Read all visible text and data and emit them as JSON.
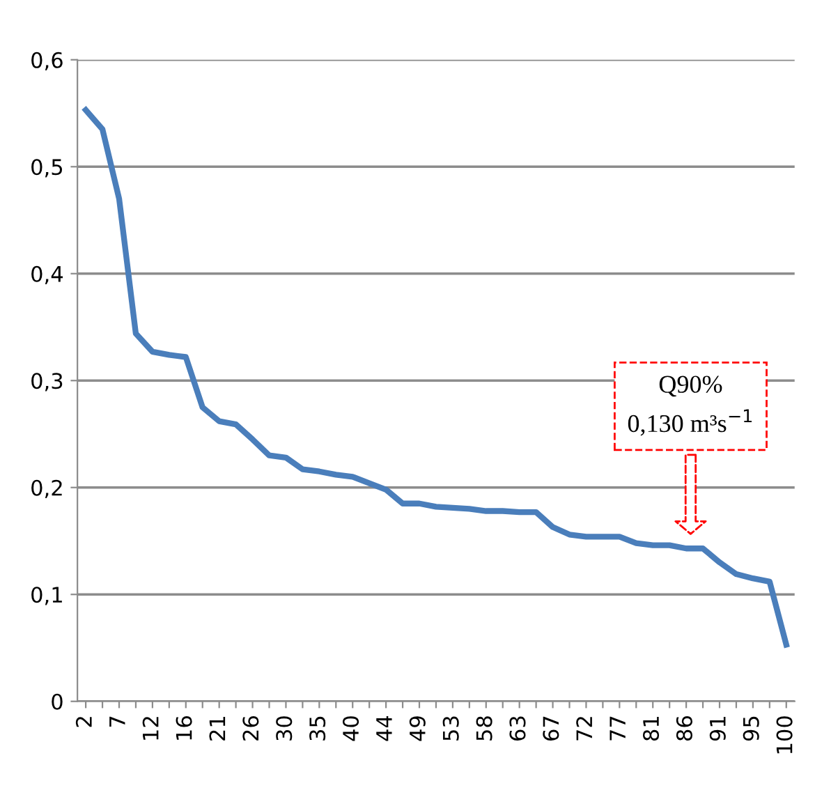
{
  "chart_data": {
    "type": "line",
    "categories": [
      "2",
      null,
      "7",
      null,
      "12",
      null,
      "16",
      null,
      "21",
      null,
      "26",
      null,
      "30",
      null,
      "35",
      null,
      "40",
      null,
      "44",
      null,
      "49",
      null,
      "53",
      null,
      "58",
      null,
      "63",
      null,
      "67",
      null,
      "72",
      null,
      "77",
      null,
      "81",
      null,
      "86",
      null,
      "91",
      null,
      "95",
      null,
      "100"
    ],
    "series": [
      {
        "color": "#4a7ebb",
        "values": [
          0.553,
          0.535,
          0.47,
          0.344,
          0.327,
          0.324,
          0.322,
          0.275,
          0.262,
          0.259,
          0.245,
          0.23,
          0.228,
          0.217,
          0.215,
          0.212,
          0.21,
          0.204,
          0.198,
          0.185,
          0.185,
          0.182,
          0.181,
          0.18,
          0.178,
          0.178,
          0.177,
          0.177,
          0.163,
          0.156,
          0.154,
          0.154,
          0.154,
          0.148,
          0.146,
          0.146,
          0.143,
          0.143,
          0.13,
          0.119,
          0.115,
          0.112,
          0.053
        ]
      }
    ],
    "ylim": [
      0,
      0.6
    ],
    "yticks": [
      {
        "value": 0,
        "label": "0"
      },
      {
        "value": 0.1,
        "label": "0,1"
      },
      {
        "value": 0.2,
        "label": "0,2"
      },
      {
        "value": 0.3,
        "label": "0,3"
      },
      {
        "value": 0.4,
        "label": "0,4"
      },
      {
        "value": 0.5,
        "label": "0,5"
      },
      {
        "value": 0.6,
        "label": "0,6"
      }
    ],
    "grid": "y",
    "legend": false,
    "marker": "none",
    "line_style": "solid",
    "annotations": [
      "Q90%\n0,130 m³s$^{−1}$"
    ]
  }
}
